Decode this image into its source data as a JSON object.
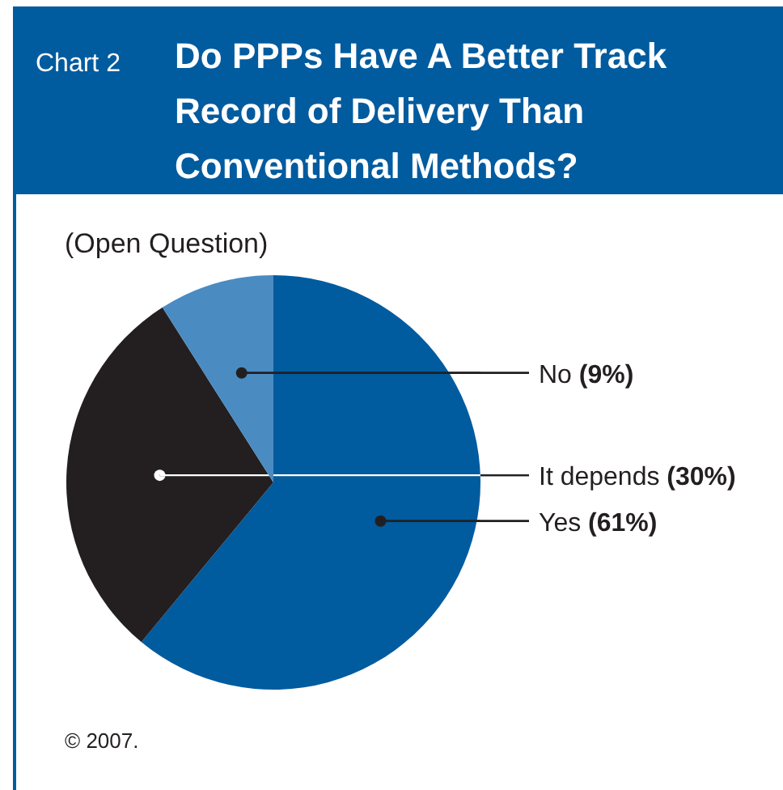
{
  "chart_data": {
    "type": "pie",
    "title": "Do PPPs Have A Better Track\nRecord of Delivery Than\nConventional Methods?",
    "subtitle": "(Open Question)",
    "categories": [
      "Yes",
      "It depends",
      "No"
    ],
    "values": [
      61,
      30,
      9
    ],
    "colors": [
      "#005b9f",
      "#231f20",
      "#4a8bc2"
    ],
    "value_labels": [
      "(61%)",
      "(30%)",
      "(9%)"
    ],
    "annotations": [
      "Chart 2",
      "© 2007."
    ]
  }
}
